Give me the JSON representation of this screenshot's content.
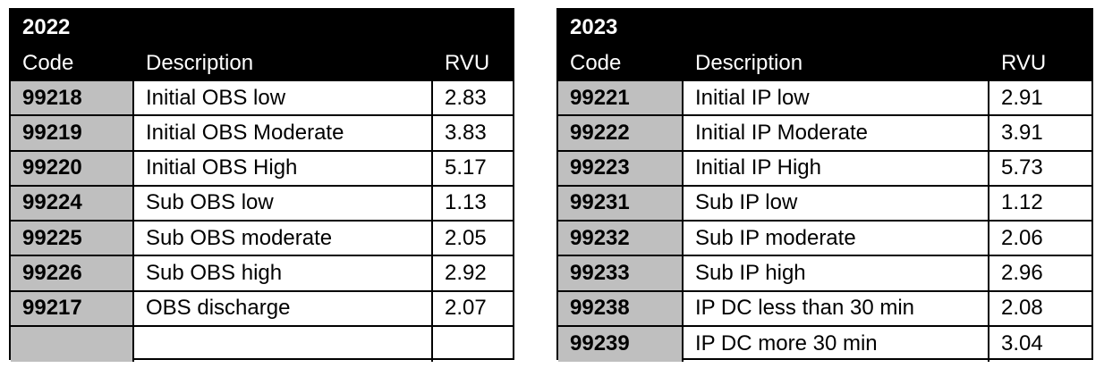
{
  "tables": [
    {
      "year": "2022",
      "header": [
        "Code",
        "Description",
        "RVU"
      ],
      "rows": [
        [
          "99218",
          "Initial OBS low",
          2.83
        ],
        [
          "99219",
          "Initial OBS Moderate",
          3.83
        ],
        [
          "99220",
          "Initial OBS High",
          5.17
        ],
        [
          "99224",
          "Sub OBS low",
          1.13
        ],
        [
          "99225",
          "Sub OBS moderate",
          2.05
        ],
        [
          "99226",
          "Sub OBS high",
          2.92
        ],
        [
          "99217",
          "OBS discharge",
          2.07
        ]
      ]
    },
    {
      "year": "2023",
      "header": [
        "Code",
        "Description",
        "RVU"
      ],
      "rows": [
        [
          "99221",
          "Initial IP low",
          2.91
        ],
        [
          "99222",
          "Initial IP Moderate",
          3.91
        ],
        [
          "99223",
          "Initial IP High",
          5.73
        ],
        [
          "99231",
          "Sub IP low",
          1.12
        ],
        [
          "99232",
          "Sub IP moderate",
          2.06
        ],
        [
          "99233",
          "Sub IP high",
          2.96
        ],
        [
          "99238",
          "IP DC less than 30 min",
          2.08
        ],
        [
          "99239",
          "IP DC more 30 min",
          3.04
        ]
      ]
    }
  ]
}
